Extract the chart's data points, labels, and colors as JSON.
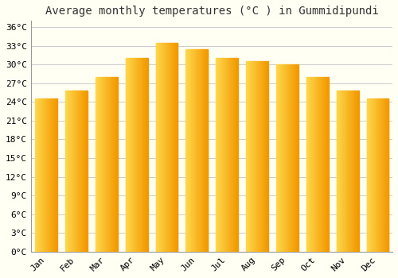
{
  "title": "Average monthly temperatures (°C ) in Gummidipundi",
  "months": [
    "Jan",
    "Feb",
    "Mar",
    "Apr",
    "May",
    "Jun",
    "Jul",
    "Aug",
    "Sep",
    "Oct",
    "Nov",
    "Dec"
  ],
  "values": [
    24.5,
    25.8,
    28.0,
    31.0,
    33.5,
    32.5,
    31.0,
    30.5,
    30.0,
    28.0,
    25.8,
    24.6
  ],
  "bar_color_dark": "#F5A000",
  "bar_color_light": "#FFD060",
  "background_color": "#FFFFF4",
  "grid_color": "#CCCCCC",
  "ytick_step": 3,
  "ymin": 0,
  "ymax": 37,
  "title_fontsize": 10,
  "tick_fontsize": 8
}
